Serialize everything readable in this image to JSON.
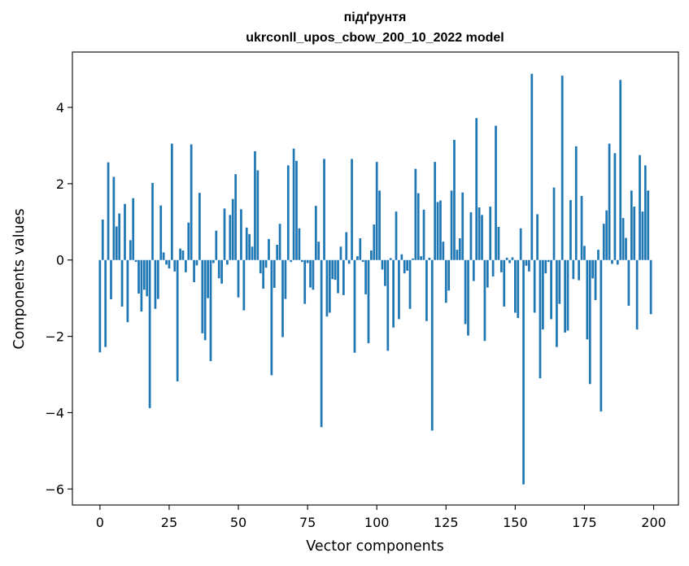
{
  "chart_data": {
    "type": "bar",
    "title": "підґрунтя",
    "subtitle": "ukrconll_upos_cbow_200_10_2022 model",
    "xlabel": "Vector components",
    "ylabel": "Components values",
    "xlim": [
      -9.95,
      208.95
    ],
    "ylim": [
      -6.42,
      5.45
    ],
    "xticks": [
      0,
      25,
      50,
      75,
      100,
      125,
      150,
      175,
      200
    ],
    "xtick_labels": [
      "0",
      "25",
      "50",
      "75",
      "100",
      "125",
      "150",
      "175",
      "200"
    ],
    "yticks": [
      -6,
      -4,
      -2,
      0,
      2,
      4
    ],
    "ytick_labels": [
      "−6",
      "−4",
      "−2",
      "0",
      "2",
      "4"
    ],
    "grid": false,
    "legend": "none",
    "bar_color": "#1f77b4",
    "x": [
      0,
      1,
      2,
      3,
      4,
      5,
      6,
      7,
      8,
      9,
      10,
      11,
      12,
      13,
      14,
      15,
      16,
      17,
      18,
      19,
      20,
      21,
      22,
      23,
      24,
      25,
      26,
      27,
      28,
      29,
      30,
      31,
      32,
      33,
      34,
      35,
      36,
      37,
      38,
      39,
      40,
      41,
      42,
      43,
      44,
      45,
      46,
      47,
      48,
      49,
      50,
      51,
      52,
      53,
      54,
      55,
      56,
      57,
      58,
      59,
      60,
      61,
      62,
      63,
      64,
      65,
      66,
      67,
      68,
      69,
      70,
      71,
      72,
      73,
      74,
      75,
      76,
      77,
      78,
      79,
      80,
      81,
      82,
      83,
      84,
      85,
      86,
      87,
      88,
      89,
      90,
      91,
      92,
      93,
      94,
      95,
      96,
      97,
      98,
      99,
      100,
      101,
      102,
      103,
      104,
      105,
      106,
      107,
      108,
      109,
      110,
      111,
      112,
      113,
      114,
      115,
      116,
      117,
      118,
      119,
      120,
      121,
      122,
      123,
      124,
      125,
      126,
      127,
      128,
      129,
      130,
      131,
      132,
      133,
      134,
      135,
      136,
      137,
      138,
      139,
      140,
      141,
      142,
      143,
      144,
      145,
      146,
      147,
      148,
      149,
      150,
      151,
      152,
      153,
      154,
      155,
      156,
      157,
      158,
      159,
      160,
      161,
      162,
      163,
      164,
      165,
      166,
      167,
      168,
      169,
      170,
      171,
      172,
      173,
      174,
      175,
      176,
      177,
      178,
      179,
      180,
      181,
      182,
      183,
      184,
      185,
      186,
      187,
      188,
      189,
      190,
      191,
      192,
      193,
      194,
      195,
      196,
      197,
      198,
      199
    ],
    "values": [
      -2.42,
      1.06,
      -2.28,
      2.56,
      -1.03,
      2.18,
      0.88,
      1.22,
      -1.22,
      1.47,
      -1.63,
      0.52,
      1.62,
      -0.05,
      -0.88,
      -1.35,
      -0.78,
      -0.95,
      -3.88,
      2.02,
      -1.28,
      -1.02,
      1.43,
      0.2,
      -0.12,
      -0.22,
      3.05,
      -0.3,
      -3.18,
      0.3,
      0.25,
      -0.32,
      0.98,
      3.03,
      -0.58,
      -0.14,
      1.76,
      -1.92,
      -2.1,
      -1.0,
      -2.65,
      -0.08,
      0.77,
      -0.48,
      -0.62,
      1.35,
      -0.12,
      1.18,
      1.6,
      2.25,
      -0.98,
      1.33,
      -1.32,
      0.85,
      0.68,
      0.35,
      2.85,
      2.35,
      -0.35,
      -0.75,
      -0.2,
      0.55,
      -3.02,
      -0.73,
      0.4,
      0.95,
      -2.02,
      -1.02,
      2.48,
      -0.05,
      2.92,
      2.6,
      0.83,
      -0.05,
      -1.15,
      -0.08,
      -0.72,
      -0.78,
      1.42,
      0.48,
      -4.38,
      2.65,
      -1.48,
      -1.38,
      -0.5,
      -0.52,
      -0.87,
      0.35,
      -0.92,
      0.73,
      -0.1,
      2.65,
      -2.43,
      0.1,
      0.57,
      -0.05,
      -0.9,
      -2.18,
      0.25,
      0.93,
      2.57,
      1.82,
      -0.25,
      -0.68,
      -2.38,
      0.05,
      -1.77,
      1.27,
      -1.55,
      0.15,
      -0.35,
      -0.28,
      -1.28,
      0.04,
      2.39,
      1.75,
      0.1,
      1.32,
      -1.6,
      0.06,
      -4.47,
      2.57,
      1.52,
      1.56,
      0.48,
      -1.12,
      -0.8,
      1.82,
      3.15,
      0.27,
      0.57,
      1.77,
      -1.68,
      -1.98,
      1.25,
      -0.55,
      3.72,
      1.38,
      1.18,
      -2.12,
      -0.72,
      1.4,
      -0.43,
      3.52,
      0.87,
      -0.32,
      -1.22,
      0.06,
      -0.08,
      0.07,
      -1.38,
      -1.52,
      0.83,
      -5.88,
      -0.15,
      -0.3,
      4.88,
      -1.38,
      1.2,
      -3.1,
      -1.82,
      -0.35,
      -0.05,
      -1.55,
      1.9,
      -2.28,
      -1.15,
      4.83,
      -1.9,
      -1.85,
      1.57,
      -0.5,
      2.98,
      -0.53,
      1.68,
      0.37,
      -2.08,
      -3.25,
      -0.48,
      -1.05,
      0.27,
      -3.97,
      0.95,
      1.3,
      3.05,
      -0.1,
      2.8,
      -0.12,
      4.72,
      1.1,
      0.58,
      -1.2,
      1.82,
      1.4,
      -1.82,
      2.75,
      1.27,
      2.48,
      1.82,
      -1.42
    ]
  }
}
